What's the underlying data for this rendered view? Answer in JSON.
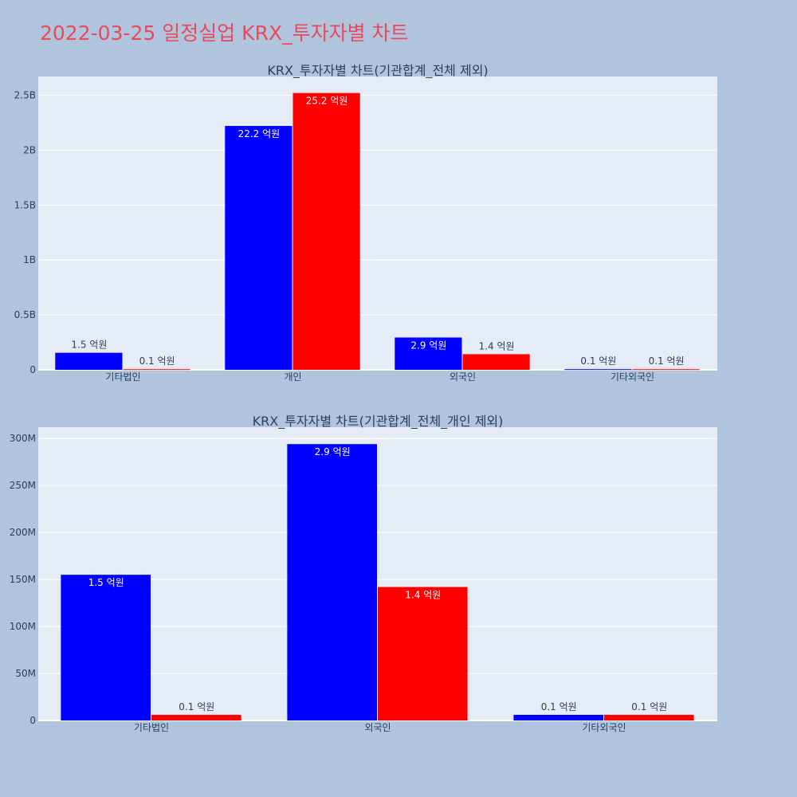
{
  "page": {
    "title": "2022-03-25 일정실업 KRX_투자자별 차트"
  },
  "colors": {
    "buy": "#0000ff",
    "sell": "#ff0000",
    "plot_bg": "#e5ecf6",
    "page_bg": "#b0c4de",
    "title": "#e8495c"
  },
  "chart_data": [
    {
      "type": "bar",
      "title": "KRX_투자자별 차트(기관합계_전체 제외)",
      "categories": [
        "기타법인",
        "개인",
        "외국인",
        "기타외국인"
      ],
      "series": [
        {
          "values": [
            155000000,
            2220000000,
            294000000,
            6000000
          ],
          "labels": [
            "1.5 억원",
            "22.2 억원",
            "2.9 억원",
            "0.1 억원"
          ]
        },
        {
          "values": [
            6000000,
            2520000000,
            142000000,
            6000000
          ],
          "labels": [
            "0.1 억원",
            "25.2 억원",
            "1.4 억원",
            "0.1 억원"
          ]
        }
      ],
      "ylim": [
        0,
        2670000000
      ],
      "yticks": [
        0,
        500000000,
        1000000000,
        1500000000,
        2000000000,
        2500000000
      ],
      "ytick_labels": [
        "0",
        "0.5B",
        "1B",
        "1.5B",
        "2B",
        "2.5B"
      ],
      "grid": true
    },
    {
      "type": "bar",
      "title": "KRX_투자자별 차트(기관합계_전체_개인 제외)",
      "categories": [
        "기타법인",
        "외국인",
        "기타외국인"
      ],
      "series": [
        {
          "values": [
            155000000,
            294000000,
            6000000
          ],
          "labels": [
            "1.5 억원",
            "2.9 억원",
            "0.1 억원"
          ]
        },
        {
          "values": [
            6000000,
            142000000,
            6000000
          ],
          "labels": [
            "0.1 억원",
            "1.4 억원",
            "0.1 억원"
          ]
        }
      ],
      "ylim": [
        0,
        312000000
      ],
      "yticks": [
        0,
        50000000,
        100000000,
        150000000,
        200000000,
        250000000,
        300000000
      ],
      "ytick_labels": [
        "0",
        "50M",
        "100M",
        "150M",
        "200M",
        "250M",
        "300M"
      ],
      "grid": true
    }
  ]
}
